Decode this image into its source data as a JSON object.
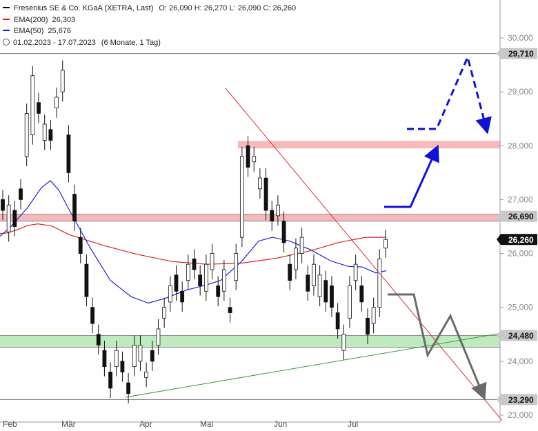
{
  "legend": {
    "title": "Fresenius SE & Co. KGaA (XETRA, Last)",
    "ohlc": "O: 26,090  H: 26,270  L: 26,090  C: 26,260",
    "ema200_label": "EMA(200)",
    "ema200_value": "26,303",
    "ema50_label": "EMA(50)",
    "ema50_value": "25,676",
    "range": "01.02.2023 - 17.07.2023",
    "period": "(6 Monate, 1 Tag)"
  },
  "colors": {
    "ema200": "#e02020",
    "ema50": "#2020e0",
    "resistance_zone": "#f6baba",
    "support_zone": "#bfeabf",
    "blue_arrow": "#1010d8",
    "gray_arrow": "#6a6a6a",
    "current_badge": "#111111"
  },
  "chart_data": {
    "type": "candlestick",
    "x_ticks": [
      "Feb",
      "Mär",
      "Apr",
      "Mai",
      "Jun",
      "Jul"
    ],
    "y_ticks": [
      "30,000",
      "29,000",
      "28,000",
      "27,000",
      "26,000",
      "25,000",
      "24,000",
      "23,000"
    ],
    "ylim": [
      22.93,
      30.35
    ],
    "levels": [
      {
        "label": "29,710",
        "value": 29.71,
        "style": "line"
      },
      {
        "label": "26,690",
        "value": 26.69,
        "style": "zone",
        "zone": [
          26.6,
          26.73
        ]
      },
      {
        "label": "26,260",
        "value": 26.26,
        "style": "current"
      },
      {
        "label": "24,480",
        "value": 24.48,
        "style": "zone",
        "zone": [
          24.26,
          24.48
        ]
      },
      {
        "label": "23,290",
        "value": 23.29,
        "style": "line"
      }
    ],
    "resistance_zone_upper": [
      27.95,
      28.09
    ],
    "ema200": [
      [
        0,
        26.37
      ],
      [
        10,
        26.38
      ],
      [
        25,
        26.44
      ],
      [
        40,
        26.52
      ],
      [
        55,
        26.55
      ],
      [
        75,
        26.51
      ],
      [
        100,
        26.35
      ],
      [
        150,
        26.15
      ],
      [
        200,
        25.98
      ],
      [
        250,
        25.85
      ],
      [
        300,
        25.8
      ],
      [
        350,
        25.82
      ],
      [
        400,
        25.91
      ],
      [
        450,
        26.05
      ],
      [
        490,
        26.2
      ],
      [
        530,
        26.3
      ],
      [
        560,
        26.3
      ]
    ],
    "ema50": [
      [
        0,
        26.32
      ],
      [
        15,
        26.49
      ],
      [
        40,
        26.85
      ],
      [
        60,
        27.22
      ],
      [
        73,
        27.35
      ],
      [
        85,
        27.18
      ],
      [
        100,
        26.82
      ],
      [
        130,
        26.12
      ],
      [
        160,
        25.5
      ],
      [
        190,
        25.2
      ],
      [
        215,
        25.08
      ],
      [
        240,
        25.17
      ],
      [
        270,
        25.32
      ],
      [
        300,
        25.42
      ],
      [
        320,
        25.5
      ],
      [
        350,
        25.85
      ],
      [
        375,
        26.23
      ],
      [
        395,
        26.3
      ],
      [
        420,
        26.23
      ],
      [
        450,
        26.07
      ],
      [
        480,
        25.86
      ],
      [
        505,
        25.76
      ],
      [
        525,
        25.75
      ],
      [
        545,
        25.64
      ],
      [
        560,
        25.68
      ]
    ],
    "candles": [
      [
        27.0,
        26.8
      ],
      [
        26.4,
        26.9
      ],
      [
        26.8,
        26.5
      ],
      [
        27.2,
        27.0
      ],
      [
        27.8,
        28.6
      ],
      [
        28.2,
        29.3
      ],
      [
        28.8,
        28.6
      ],
      [
        28.1,
        28.4
      ],
      [
        28.3,
        28.1
      ],
      [
        28.7,
        28.9
      ],
      [
        29.0,
        29.4
      ],
      [
        28.2,
        27.5
      ],
      [
        27.1,
        26.6
      ],
      [
        26.3,
        26.0
      ],
      [
        25.8,
        25.2
      ],
      [
        25.0,
        24.7
      ],
      [
        24.5,
        24.3
      ],
      [
        24.2,
        23.9
      ],
      [
        23.8,
        23.5
      ],
      [
        23.9,
        24.2
      ],
      [
        24.0,
        23.8
      ],
      [
        23.6,
        23.4
      ],
      [
        23.9,
        24.3
      ],
      [
        24.0,
        24.3
      ],
      [
        23.7,
        23.8
      ],
      [
        24.2,
        24.0
      ],
      [
        24.3,
        24.6
      ],
      [
        24.8,
        25.0
      ],
      [
        25.1,
        25.4
      ],
      [
        25.6,
        25.3
      ],
      [
        25.3,
        25.1
      ],
      [
        25.5,
        25.8
      ],
      [
        25.9,
        25.7
      ],
      [
        25.6,
        25.4
      ],
      [
        25.3,
        25.8
      ],
      [
        25.7,
        26.0
      ],
      [
        25.4,
        25.2
      ],
      [
        25.3,
        25.7
      ],
      [
        25.0,
        24.9
      ],
      [
        25.5,
        26.0
      ],
      [
        26.3,
        27.8
      ],
      [
        28.0,
        27.6
      ],
      [
        27.7,
        27.8
      ],
      [
        27.2,
        27.4
      ],
      [
        27.4,
        26.8
      ],
      [
        26.8,
        26.6
      ],
      [
        26.7,
        26.9
      ],
      [
        26.6,
        26.2
      ],
      [
        25.8,
        25.5
      ],
      [
        25.7,
        26.1
      ],
      [
        26.0,
        26.3
      ],
      [
        25.6,
        25.3
      ],
      [
        25.4,
        25.8
      ],
      [
        25.2,
        25.6
      ],
      [
        25.5,
        25.1
      ],
      [
        25.4,
        25.0
      ],
      [
        24.9,
        24.6
      ],
      [
        24.2,
        24.5
      ],
      [
        24.8,
        25.4
      ],
      [
        25.5,
        25.8
      ],
      [
        25.4,
        25.1
      ],
      [
        24.8,
        24.5
      ],
      [
        24.7,
        25.0
      ],
      [
        25.0,
        25.9
      ],
      [
        26.1,
        26.26
      ]
    ]
  },
  "annotations": {
    "blue_path": [
      [
        557,
        300
      ],
      [
        595,
        300
      ],
      [
        632,
        218
      ]
    ],
    "blue_dashed": [
      [
        590,
        187
      ],
      [
        633,
        187
      ],
      [
        678,
        83
      ],
      [
        705,
        186
      ]
    ],
    "gray_path": [
      [
        562,
        427
      ],
      [
        600,
        427
      ],
      [
        620,
        515
      ],
      [
        653,
        458
      ],
      [
        700,
        572
      ]
    ],
    "red_trend": [
      [
        327,
        128
      ],
      [
        728,
        610
      ]
    ],
    "green_trend": [
      [
        182,
        576
      ],
      [
        728,
        483
      ]
    ]
  }
}
